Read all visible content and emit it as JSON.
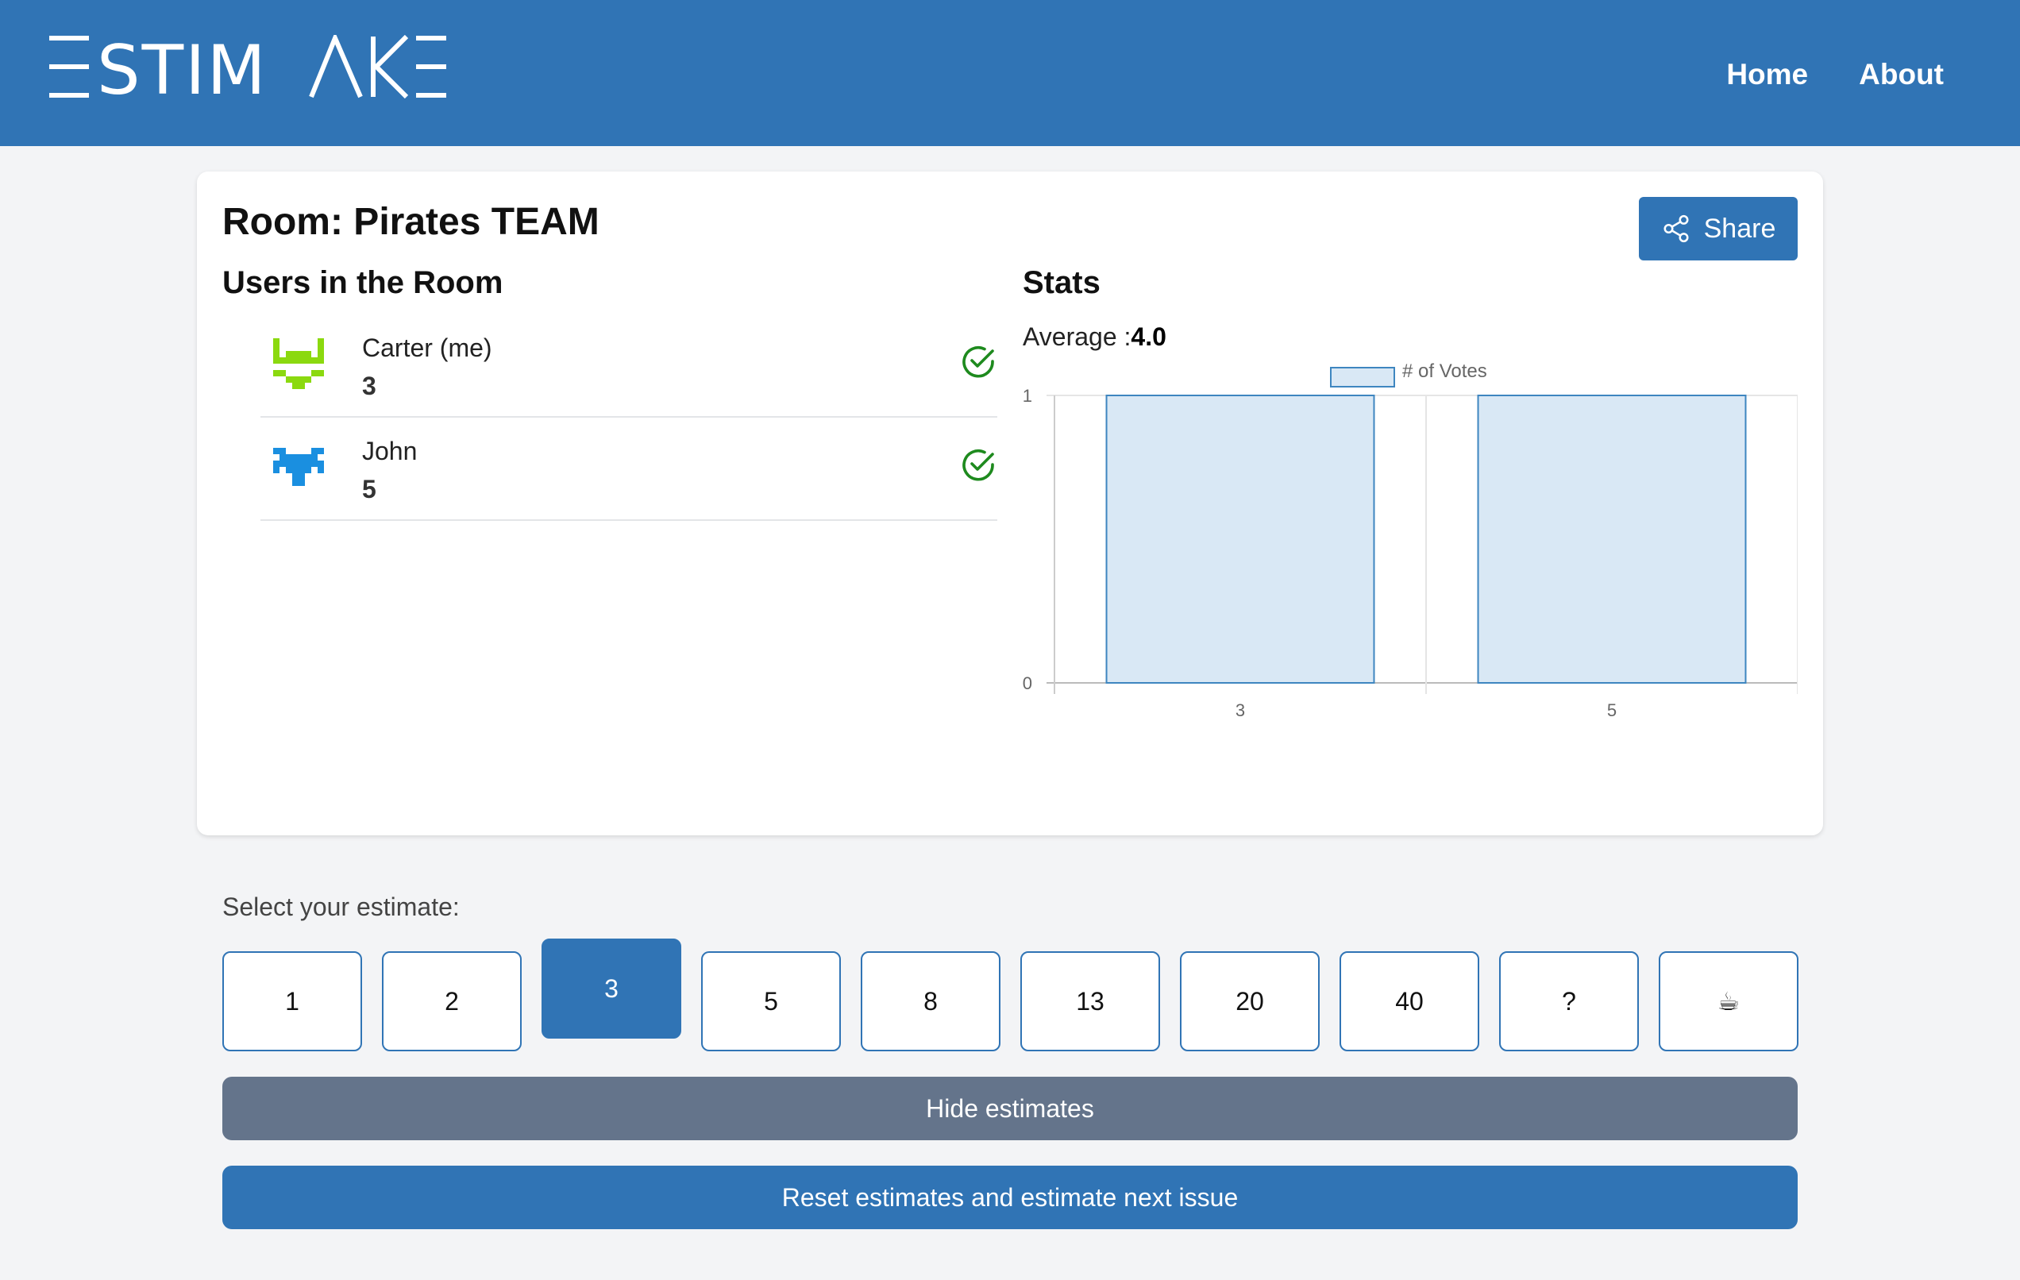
{
  "header": {
    "logo": "ESTIMAKE",
    "nav": [
      "Home",
      "About"
    ]
  },
  "room": {
    "title": "Room: Pirates TEAM",
    "share_label": "Share",
    "users_title": "Users in the Room",
    "stats_title": "Stats",
    "average_label": "Average :",
    "average_value": "4.0",
    "users": [
      {
        "name": "Carter (me)",
        "vote": "3",
        "avatar_color": "#8bd90f",
        "voted": true
      },
      {
        "name": "John",
        "vote": "5",
        "avatar_color": "#1a8fe0",
        "voted": true
      }
    ]
  },
  "chart_data": {
    "type": "bar",
    "categories": [
      "3",
      "5"
    ],
    "series": [
      {
        "name": "# of Votes",
        "values": [
          1,
          1
        ]
      }
    ],
    "ylim": [
      0,
      1
    ],
    "yticks": [
      "0",
      "1"
    ],
    "legend": "top",
    "grid": true,
    "bar_fill": "#d9e8f5",
    "bar_stroke": "#3e86c0"
  },
  "estimate": {
    "label": "Select your estimate:",
    "options": [
      "1",
      "2",
      "3",
      "5",
      "8",
      "13",
      "20",
      "40",
      "?",
      "☕"
    ],
    "selected": "3"
  },
  "actions": {
    "hide": "Hide estimates",
    "reset": "Reset estimates and estimate next issue"
  },
  "colors": {
    "primary": "#3074b5",
    "secondary": "#64748b",
    "check": "#1e8a1e"
  }
}
